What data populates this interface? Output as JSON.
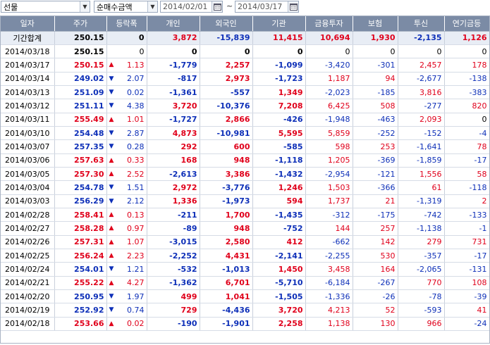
{
  "toolbar": {
    "market_select": "선물",
    "metric_select": "순매수금액",
    "start_date": "2014/02/01",
    "separator": "~",
    "end_date": "2014/03/17",
    "dropdown_icon": "chevron-down-icon",
    "calendar_icon": "calendar-icon"
  },
  "colors": {
    "up": "#e0001b",
    "down": "#0d2fb8",
    "header_bg": "#7b8ba5"
  },
  "columns": [
    "일자",
    "주가",
    "등락폭",
    "개인",
    "외국인",
    "기관",
    "금융투자",
    "보험",
    "투신",
    "연기금등"
  ],
  "rows": [
    {
      "date": "기간합계",
      "price": "250.15",
      "pc": "black",
      "dir": "",
      "chg": "0",
      "c": "black",
      "ind": "3,872",
      "ic": "red",
      "frn": "-15,839",
      "fc": "blue",
      "inst": "11,415",
      "sc": "red",
      "fin": "10,694",
      "nc": "red",
      "ins": "1,930",
      "uc": "red",
      "tr": "-2,135",
      "tc": "blue",
      "pen": "1,126",
      "ec": "red",
      "total": true
    },
    {
      "date": "2014/03/18",
      "price": "250.15",
      "pc": "black",
      "dir": "",
      "chg": "0",
      "c": "black",
      "ind": "0",
      "ic": "black",
      "frn": "0",
      "fc": "black",
      "inst": "0",
      "sc": "black",
      "fin": "0",
      "nc": "black",
      "ins": "0",
      "uc": "black",
      "tr": "0",
      "tc": "black",
      "pen": "0",
      "ec": "black"
    },
    {
      "date": "2014/03/17",
      "price": "250.15",
      "pc": "red",
      "dir": "up",
      "chg": "1.13",
      "c": "red",
      "ind": "-1,779",
      "ic": "blue",
      "frn": "2,257",
      "fc": "red",
      "inst": "-1,099",
      "sc": "blue",
      "fin": "-3,420",
      "nc": "blue",
      "ins": "-301",
      "uc": "blue",
      "tr": "2,457",
      "tc": "red",
      "pen": "178",
      "ec": "red"
    },
    {
      "date": "2014/03/14",
      "price": "249.02",
      "pc": "blue",
      "dir": "down",
      "chg": "2.07",
      "c": "blue",
      "ind": "-817",
      "ic": "blue",
      "frn": "2,973",
      "fc": "red",
      "inst": "-1,723",
      "sc": "blue",
      "fin": "1,187",
      "nc": "red",
      "ins": "94",
      "uc": "red",
      "tr": "-2,677",
      "tc": "blue",
      "pen": "-138",
      "ec": "blue"
    },
    {
      "date": "2014/03/13",
      "price": "251.09",
      "pc": "blue",
      "dir": "down",
      "chg": "0.02",
      "c": "blue",
      "ind": "-1,361",
      "ic": "blue",
      "frn": "-557",
      "fc": "blue",
      "inst": "1,349",
      "sc": "red",
      "fin": "-2,023",
      "nc": "blue",
      "ins": "-185",
      "uc": "blue",
      "tr": "3,816",
      "tc": "red",
      "pen": "-383",
      "ec": "blue"
    },
    {
      "date": "2014/03/12",
      "price": "251.11",
      "pc": "blue",
      "dir": "down",
      "chg": "4.38",
      "c": "blue",
      "ind": "3,720",
      "ic": "red",
      "frn": "-10,376",
      "fc": "blue",
      "inst": "7,208",
      "sc": "red",
      "fin": "6,425",
      "nc": "red",
      "ins": "508",
      "uc": "red",
      "tr": "-277",
      "tc": "blue",
      "pen": "820",
      "ec": "red"
    },
    {
      "date": "2014/03/11",
      "price": "255.49",
      "pc": "red",
      "dir": "up",
      "chg": "1.01",
      "c": "red",
      "ind": "-1,727",
      "ic": "blue",
      "frn": "2,866",
      "fc": "red",
      "inst": "-426",
      "sc": "blue",
      "fin": "-1,948",
      "nc": "blue",
      "ins": "-463",
      "uc": "blue",
      "tr": "2,093",
      "tc": "red",
      "pen": "0",
      "ec": "black"
    },
    {
      "date": "2014/03/10",
      "price": "254.48",
      "pc": "blue",
      "dir": "down",
      "chg": "2.87",
      "c": "blue",
      "ind": "4,873",
      "ic": "red",
      "frn": "-10,981",
      "fc": "blue",
      "inst": "5,595",
      "sc": "red",
      "fin": "5,859",
      "nc": "red",
      "ins": "-252",
      "uc": "blue",
      "tr": "-152",
      "tc": "blue",
      "pen": "-4",
      "ec": "blue"
    },
    {
      "date": "2014/03/07",
      "price": "257.35",
      "pc": "blue",
      "dir": "down",
      "chg": "0.28",
      "c": "blue",
      "ind": "292",
      "ic": "red",
      "frn": "600",
      "fc": "red",
      "inst": "-585",
      "sc": "blue",
      "fin": "598",
      "nc": "red",
      "ins": "253",
      "uc": "red",
      "tr": "-1,641",
      "tc": "blue",
      "pen": "78",
      "ec": "red"
    },
    {
      "date": "2014/03/06",
      "price": "257.63",
      "pc": "red",
      "dir": "up",
      "chg": "0.33",
      "c": "red",
      "ind": "168",
      "ic": "red",
      "frn": "948",
      "fc": "red",
      "inst": "-1,118",
      "sc": "blue",
      "fin": "1,205",
      "nc": "red",
      "ins": "-369",
      "uc": "blue",
      "tr": "-1,859",
      "tc": "blue",
      "pen": "-17",
      "ec": "blue"
    },
    {
      "date": "2014/03/05",
      "price": "257.30",
      "pc": "red",
      "dir": "up",
      "chg": "2.52",
      "c": "red",
      "ind": "-2,613",
      "ic": "blue",
      "frn": "3,386",
      "fc": "red",
      "inst": "-1,432",
      "sc": "blue",
      "fin": "-2,954",
      "nc": "blue",
      "ins": "-121",
      "uc": "blue",
      "tr": "1,556",
      "tc": "red",
      "pen": "58",
      "ec": "red"
    },
    {
      "date": "2014/03/04",
      "price": "254.78",
      "pc": "blue",
      "dir": "down",
      "chg": "1.51",
      "c": "blue",
      "ind": "2,972",
      "ic": "red",
      "frn": "-3,776",
      "fc": "blue",
      "inst": "1,246",
      "sc": "red",
      "fin": "1,503",
      "nc": "red",
      "ins": "-366",
      "uc": "blue",
      "tr": "61",
      "tc": "red",
      "pen": "-118",
      "ec": "blue"
    },
    {
      "date": "2014/03/03",
      "price": "256.29",
      "pc": "blue",
      "dir": "down",
      "chg": "2.12",
      "c": "blue",
      "ind": "1,336",
      "ic": "red",
      "frn": "-1,973",
      "fc": "blue",
      "inst": "594",
      "sc": "red",
      "fin": "1,737",
      "nc": "red",
      "ins": "21",
      "uc": "red",
      "tr": "-1,319",
      "tc": "blue",
      "pen": "2",
      "ec": "red"
    },
    {
      "date": "2014/02/28",
      "price": "258.41",
      "pc": "red",
      "dir": "up",
      "chg": "0.13",
      "c": "red",
      "ind": "-211",
      "ic": "blue",
      "frn": "1,700",
      "fc": "red",
      "inst": "-1,435",
      "sc": "blue",
      "fin": "-312",
      "nc": "blue",
      "ins": "-175",
      "uc": "blue",
      "tr": "-742",
      "tc": "blue",
      "pen": "-133",
      "ec": "blue"
    },
    {
      "date": "2014/02/27",
      "price": "258.28",
      "pc": "red",
      "dir": "up",
      "chg": "0.97",
      "c": "red",
      "ind": "-89",
      "ic": "blue",
      "frn": "948",
      "fc": "red",
      "inst": "-752",
      "sc": "blue",
      "fin": "144",
      "nc": "red",
      "ins": "257",
      "uc": "red",
      "tr": "-1,138",
      "tc": "blue",
      "pen": "-1",
      "ec": "blue"
    },
    {
      "date": "2014/02/26",
      "price": "257.31",
      "pc": "red",
      "dir": "up",
      "chg": "1.07",
      "c": "red",
      "ind": "-3,015",
      "ic": "blue",
      "frn": "2,580",
      "fc": "red",
      "inst": "412",
      "sc": "red",
      "fin": "-662",
      "nc": "blue",
      "ins": "142",
      "uc": "red",
      "tr": "279",
      "tc": "red",
      "pen": "731",
      "ec": "red"
    },
    {
      "date": "2014/02/25",
      "price": "256.24",
      "pc": "red",
      "dir": "up",
      "chg": "2.23",
      "c": "red",
      "ind": "-2,252",
      "ic": "blue",
      "frn": "4,431",
      "fc": "red",
      "inst": "-2,141",
      "sc": "blue",
      "fin": "-2,255",
      "nc": "blue",
      "ins": "530",
      "uc": "red",
      "tr": "-357",
      "tc": "blue",
      "pen": "-17",
      "ec": "blue"
    },
    {
      "date": "2014/02/24",
      "price": "254.01",
      "pc": "blue",
      "dir": "down",
      "chg": "1.21",
      "c": "blue",
      "ind": "-532",
      "ic": "blue",
      "frn": "-1,013",
      "fc": "blue",
      "inst": "1,450",
      "sc": "red",
      "fin": "3,458",
      "nc": "red",
      "ins": "164",
      "uc": "red",
      "tr": "-2,065",
      "tc": "blue",
      "pen": "-131",
      "ec": "blue"
    },
    {
      "date": "2014/02/21",
      "price": "255.22",
      "pc": "red",
      "dir": "up",
      "chg": "4.27",
      "c": "red",
      "ind": "-1,362",
      "ic": "blue",
      "frn": "6,701",
      "fc": "red",
      "inst": "-5,710",
      "sc": "blue",
      "fin": "-6,184",
      "nc": "blue",
      "ins": "-267",
      "uc": "blue",
      "tr": "770",
      "tc": "red",
      "pen": "108",
      "ec": "red"
    },
    {
      "date": "2014/02/20",
      "price": "250.95",
      "pc": "blue",
      "dir": "down",
      "chg": "1.97",
      "c": "blue",
      "ind": "499",
      "ic": "red",
      "frn": "1,041",
      "fc": "red",
      "inst": "-1,505",
      "sc": "blue",
      "fin": "-1,336",
      "nc": "blue",
      "ins": "-26",
      "uc": "blue",
      "tr": "-78",
      "tc": "blue",
      "pen": "-39",
      "ec": "blue"
    },
    {
      "date": "2014/02/19",
      "price": "252.92",
      "pc": "blue",
      "dir": "down",
      "chg": "0.74",
      "c": "blue",
      "ind": "729",
      "ic": "red",
      "frn": "-4,436",
      "fc": "blue",
      "inst": "3,720",
      "sc": "red",
      "fin": "4,213",
      "nc": "red",
      "ins": "52",
      "uc": "red",
      "tr": "-593",
      "tc": "blue",
      "pen": "41",
      "ec": "red"
    },
    {
      "date": "2014/02/18",
      "price": "253.66",
      "pc": "red",
      "dir": "up",
      "chg": "0.02",
      "c": "red",
      "ind": "-190",
      "ic": "blue",
      "frn": "-1,901",
      "fc": "blue",
      "inst": "2,258",
      "sc": "red",
      "fin": "1,138",
      "nc": "red",
      "ins": "130",
      "uc": "red",
      "tr": "966",
      "tc": "red",
      "pen": "-24",
      "ec": "blue"
    }
  ]
}
